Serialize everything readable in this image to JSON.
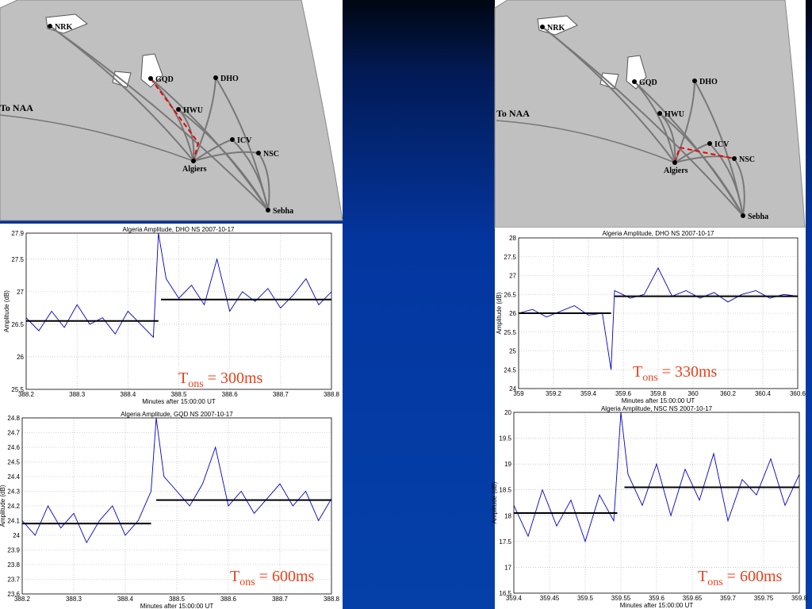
{
  "maps": [
    {
      "labels": [
        "NRK",
        "GQD",
        "DHO",
        "HWU",
        "ICV",
        "NSC",
        "Algiers",
        "Sebha",
        "To NAA"
      ]
    },
    {
      "labels": [
        "NRK",
        "GQD",
        "DHO",
        "HWU",
        "ICV",
        "NSC",
        "Algiers",
        "Sebha",
        "To NAA"
      ]
    }
  ],
  "chart_data": [
    {
      "type": "line",
      "title": "Algeria Amplitude, DHO NS 2007-10-17",
      "xlabel": "Minutes after 15:00:00 UT",
      "ylabel": "Amplitude (dB)",
      "xlim": [
        388.2,
        388.8
      ],
      "xticks": [
        388.2,
        388.3,
        388.4,
        388.5,
        388.6,
        388.7,
        388.8
      ],
      "ylim": [
        25.5,
        27.9
      ],
      "yticks": [
        25.5,
        26,
        26.5,
        27,
        27.5,
        27.9
      ],
      "grid": true,
      "series": [
        {
          "color": "#0000cc",
          "x": [
            388.2,
            388.225,
            388.25,
            388.275,
            388.3,
            388.325,
            388.35,
            388.375,
            388.4,
            388.425,
            388.45,
            388.46,
            388.475,
            388.5,
            388.525,
            388.55,
            388.575,
            388.6,
            388.625,
            388.65,
            388.675,
            388.7,
            388.725,
            388.75,
            388.775,
            388.8
          ],
          "values": [
            26.6,
            26.4,
            26.7,
            26.45,
            26.8,
            26.5,
            26.6,
            26.35,
            26.7,
            26.5,
            26.3,
            27.9,
            27.2,
            26.9,
            27.1,
            26.8,
            27.5,
            26.7,
            27.0,
            26.85,
            27.05,
            26.75,
            26.95,
            27.2,
            26.8,
            27.0
          ]
        },
        {
          "color": "#000000",
          "x": [
            388.2,
            388.46
          ],
          "values": [
            26.55,
            26.55
          ]
        },
        {
          "color": "#000000",
          "x": [
            388.465,
            388.8
          ],
          "values": [
            26.88,
            26.88
          ]
        }
      ],
      "annotation": {
        "base": "T",
        "sub": "ons",
        "rest": " = 300ms"
      }
    },
    {
      "type": "line",
      "title": "Algeria Amplitude, GQD NS 2007-10-17",
      "xlabel": "Minutes after 15:00:00 UT",
      "ylabel": "Amplitude (dB)",
      "xlim": [
        388.2,
        388.8
      ],
      "xticks": [
        388.2,
        388.3,
        388.4,
        388.5,
        388.6,
        388.7,
        388.8
      ],
      "ylim": [
        23.6,
        24.8
      ],
      "yticks": [
        23.6,
        23.7,
        23.8,
        23.9,
        24,
        24.1,
        24.2,
        24.3,
        24.4,
        24.5,
        24.6,
        24.7,
        24.8
      ],
      "grid": true,
      "series": [
        {
          "color": "#0000cc",
          "x": [
            388.2,
            388.225,
            388.25,
            388.275,
            388.3,
            388.325,
            388.35,
            388.375,
            388.4,
            388.425,
            388.45,
            388.46,
            388.475,
            388.5,
            388.525,
            388.55,
            388.575,
            388.6,
            388.625,
            388.65,
            388.675,
            388.7,
            388.725,
            388.75,
            388.775,
            388.8
          ],
          "values": [
            24.1,
            24.0,
            24.2,
            24.05,
            24.15,
            23.95,
            24.1,
            24.2,
            24.0,
            24.1,
            24.3,
            24.8,
            24.4,
            24.3,
            24.2,
            24.35,
            24.6,
            24.2,
            24.3,
            24.15,
            24.25,
            24.35,
            24.2,
            24.3,
            24.1,
            24.25
          ]
        },
        {
          "color": "#000000",
          "x": [
            388.2,
            388.45
          ],
          "values": [
            24.08,
            24.08
          ]
        },
        {
          "color": "#000000",
          "x": [
            388.46,
            388.8
          ],
          "values": [
            24.24,
            24.24
          ]
        }
      ],
      "annotation": {
        "base": "T",
        "sub": "ons",
        "rest": " = 600ms"
      }
    },
    {
      "type": "line",
      "title": "Algeria Amplitude, DHO NS 2007-10-17",
      "xlabel": "Minutes after 15:00:00 UT",
      "ylabel": "Amplitude (dB)",
      "xlim": [
        359,
        360.6
      ],
      "xticks": [
        359,
        359.2,
        359.4,
        359.6,
        359.8,
        360,
        360.2,
        360.4,
        360.6
      ],
      "ylim": [
        24,
        28
      ],
      "yticks": [
        24,
        24.5,
        25,
        25.5,
        26,
        26.5,
        27,
        27.5,
        28
      ],
      "grid": true,
      "series": [
        {
          "color": "#0000cc",
          "x": [
            359,
            359.08,
            359.16,
            359.24,
            359.32,
            359.4,
            359.48,
            359.53,
            359.55,
            359.64,
            359.72,
            359.8,
            359.88,
            359.96,
            360.04,
            360.12,
            360.2,
            360.28,
            360.36,
            360.44,
            360.52,
            360.6
          ],
          "values": [
            26.0,
            26.1,
            25.9,
            26.05,
            26.2,
            25.95,
            26.0,
            24.5,
            26.6,
            26.4,
            26.5,
            27.2,
            26.45,
            26.6,
            26.4,
            26.55,
            26.3,
            26.5,
            26.6,
            26.4,
            26.5,
            26.45
          ]
        },
        {
          "color": "#000000",
          "x": [
            359,
            359.53
          ],
          "values": [
            26.0,
            26.0
          ]
        },
        {
          "color": "#000000",
          "x": [
            359.55,
            360.6
          ],
          "values": [
            26.45,
            26.45
          ]
        }
      ],
      "annotation": {
        "base": "T",
        "sub": "ons",
        "rest": " = 330ms"
      }
    },
    {
      "type": "line",
      "title": "Algeria Amplitude, NSC NS 2007-10-17",
      "xlabel": "Minutes after 15:00:00 UT",
      "ylabel": "Amplitude (dB)",
      "xlim": [
        359.4,
        359.8
      ],
      "xticks": [
        359.4,
        359.45,
        359.5,
        359.55,
        359.6,
        359.65,
        359.7,
        359.75,
        359.8
      ],
      "ylim": [
        16.5,
        20
      ],
      "yticks": [
        16.5,
        17,
        17.5,
        18,
        18.5,
        19,
        19.5,
        20
      ],
      "grid": true,
      "series": [
        {
          "color": "#0000cc",
          "x": [
            359.4,
            359.42,
            359.44,
            359.46,
            359.48,
            359.5,
            359.52,
            359.54,
            359.55,
            359.56,
            359.58,
            359.6,
            359.62,
            359.64,
            359.66,
            359.68,
            359.7,
            359.72,
            359.74,
            359.76,
            359.78,
            359.8
          ],
          "values": [
            18.2,
            17.6,
            18.5,
            17.8,
            18.3,
            17.5,
            18.4,
            17.9,
            20,
            18.8,
            18.2,
            19.0,
            18.0,
            18.9,
            18.3,
            19.2,
            17.9,
            18.7,
            18.4,
            19.1,
            18.2,
            18.8
          ]
        },
        {
          "color": "#000000",
          "x": [
            359.4,
            359.545
          ],
          "values": [
            18.05,
            18.05
          ]
        },
        {
          "color": "#000000",
          "x": [
            359.555,
            359.8
          ],
          "values": [
            18.55,
            18.55
          ]
        }
      ],
      "annotation": {
        "base": "T",
        "sub": "ons",
        "rest": " = 600ms"
      }
    }
  ]
}
